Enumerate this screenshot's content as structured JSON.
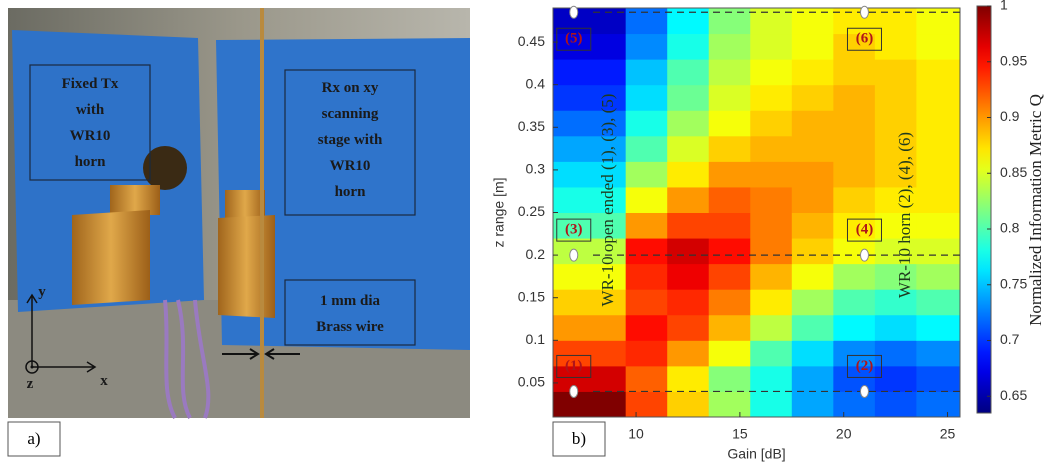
{
  "panel_a": {
    "label": "a)",
    "tx_box": [
      "Fixed Tx",
      "with",
      "WR10",
      "horn"
    ],
    "rx_box": [
      "Rx on xy",
      "scanning",
      "stage with",
      "WR10",
      "horn"
    ],
    "wire_box": [
      "1 mm dia",
      "Brass wire"
    ],
    "axes": {
      "y": "y",
      "z": "z",
      "x": "x"
    }
  },
  "chart_data": {
    "type": "heatmap",
    "panel_label": "b)",
    "xlabel": "Gain [dB]",
    "ylabel": "z range [m]",
    "colorbar_label": "Normalized Information Metric Q",
    "colormap": "jet",
    "x_edges": [
      6,
      9.5,
      11.5,
      13.5,
      15.5,
      17.5,
      19.5,
      21.5,
      23.5,
      25.6
    ],
    "y_edges": [
      0.01,
      0.04,
      0.07,
      0.1,
      0.13,
      0.16,
      0.19,
      0.22,
      0.25,
      0.28,
      0.31,
      0.34,
      0.37,
      0.4,
      0.43,
      0.46,
      0.49
    ],
    "values": [
      [
        1.0,
        0.93,
        0.88,
        0.83,
        0.78,
        0.74,
        0.72,
        0.71,
        0.72
      ],
      [
        0.97,
        0.92,
        0.87,
        0.82,
        0.78,
        0.74,
        0.71,
        0.7,
        0.71
      ],
      [
        0.93,
        0.94,
        0.9,
        0.86,
        0.8,
        0.76,
        0.73,
        0.72,
        0.73
      ],
      [
        0.9,
        0.95,
        0.93,
        0.89,
        0.84,
        0.8,
        0.77,
        0.76,
        0.77
      ],
      [
        0.88,
        0.93,
        0.94,
        0.91,
        0.87,
        0.83,
        0.8,
        0.79,
        0.8
      ],
      [
        0.86,
        0.94,
        0.96,
        0.93,
        0.89,
        0.86,
        0.83,
        0.82,
        0.83
      ],
      [
        0.84,
        0.95,
        0.97,
        0.95,
        0.91,
        0.88,
        0.86,
        0.85,
        0.85
      ],
      [
        0.8,
        0.9,
        0.93,
        0.93,
        0.91,
        0.89,
        0.87,
        0.86,
        0.86
      ],
      [
        0.78,
        0.86,
        0.9,
        0.92,
        0.91,
        0.9,
        0.88,
        0.87,
        0.87
      ],
      [
        0.76,
        0.83,
        0.87,
        0.9,
        0.9,
        0.9,
        0.89,
        0.88,
        0.87
      ],
      [
        0.74,
        0.8,
        0.85,
        0.88,
        0.89,
        0.89,
        0.89,
        0.88,
        0.87
      ],
      [
        0.72,
        0.78,
        0.83,
        0.86,
        0.88,
        0.89,
        0.89,
        0.88,
        0.87
      ],
      [
        0.7,
        0.76,
        0.81,
        0.85,
        0.87,
        0.88,
        0.89,
        0.88,
        0.87
      ],
      [
        0.69,
        0.75,
        0.8,
        0.84,
        0.86,
        0.87,
        0.88,
        0.88,
        0.87
      ],
      [
        0.67,
        0.73,
        0.78,
        0.83,
        0.85,
        0.86,
        0.88,
        0.87,
        0.86
      ],
      [
        0.66,
        0.72,
        0.77,
        0.82,
        0.85,
        0.86,
        0.87,
        0.87,
        0.86
      ]
    ],
    "xlim": [
      6,
      25.6
    ],
    "ylim": [
      0.01,
      0.49
    ],
    "xticks": [
      10,
      15,
      20,
      25
    ],
    "yticks": [
      0.05,
      0.1,
      0.15,
      0.2,
      0.25,
      0.3,
      0.35,
      0.4,
      0.45
    ],
    "clim": [
      0.635,
      1
    ],
    "cticks": [
      0.65,
      0.7,
      0.75,
      0.8,
      0.85,
      0.9,
      0.95,
      1
    ],
    "reference_lines": [
      0.04,
      0.2,
      0.485
    ],
    "markers": [
      {
        "x": 7,
        "y": 0.04,
        "label": "(1)"
      },
      {
        "x": 21,
        "y": 0.04,
        "label": "(2)"
      },
      {
        "x": 7,
        "y": 0.2,
        "label": "(3)"
      },
      {
        "x": 21,
        "y": 0.2,
        "label": "(4)"
      },
      {
        "x": 7,
        "y": 0.485,
        "label": "(5)"
      },
      {
        "x": 21,
        "y": 0.485,
        "label": "(6)"
      }
    ],
    "annotations": [
      "WR-10 open ended (1), (3), (5)",
      "WR-10 horn (2), (4), (6)"
    ]
  }
}
